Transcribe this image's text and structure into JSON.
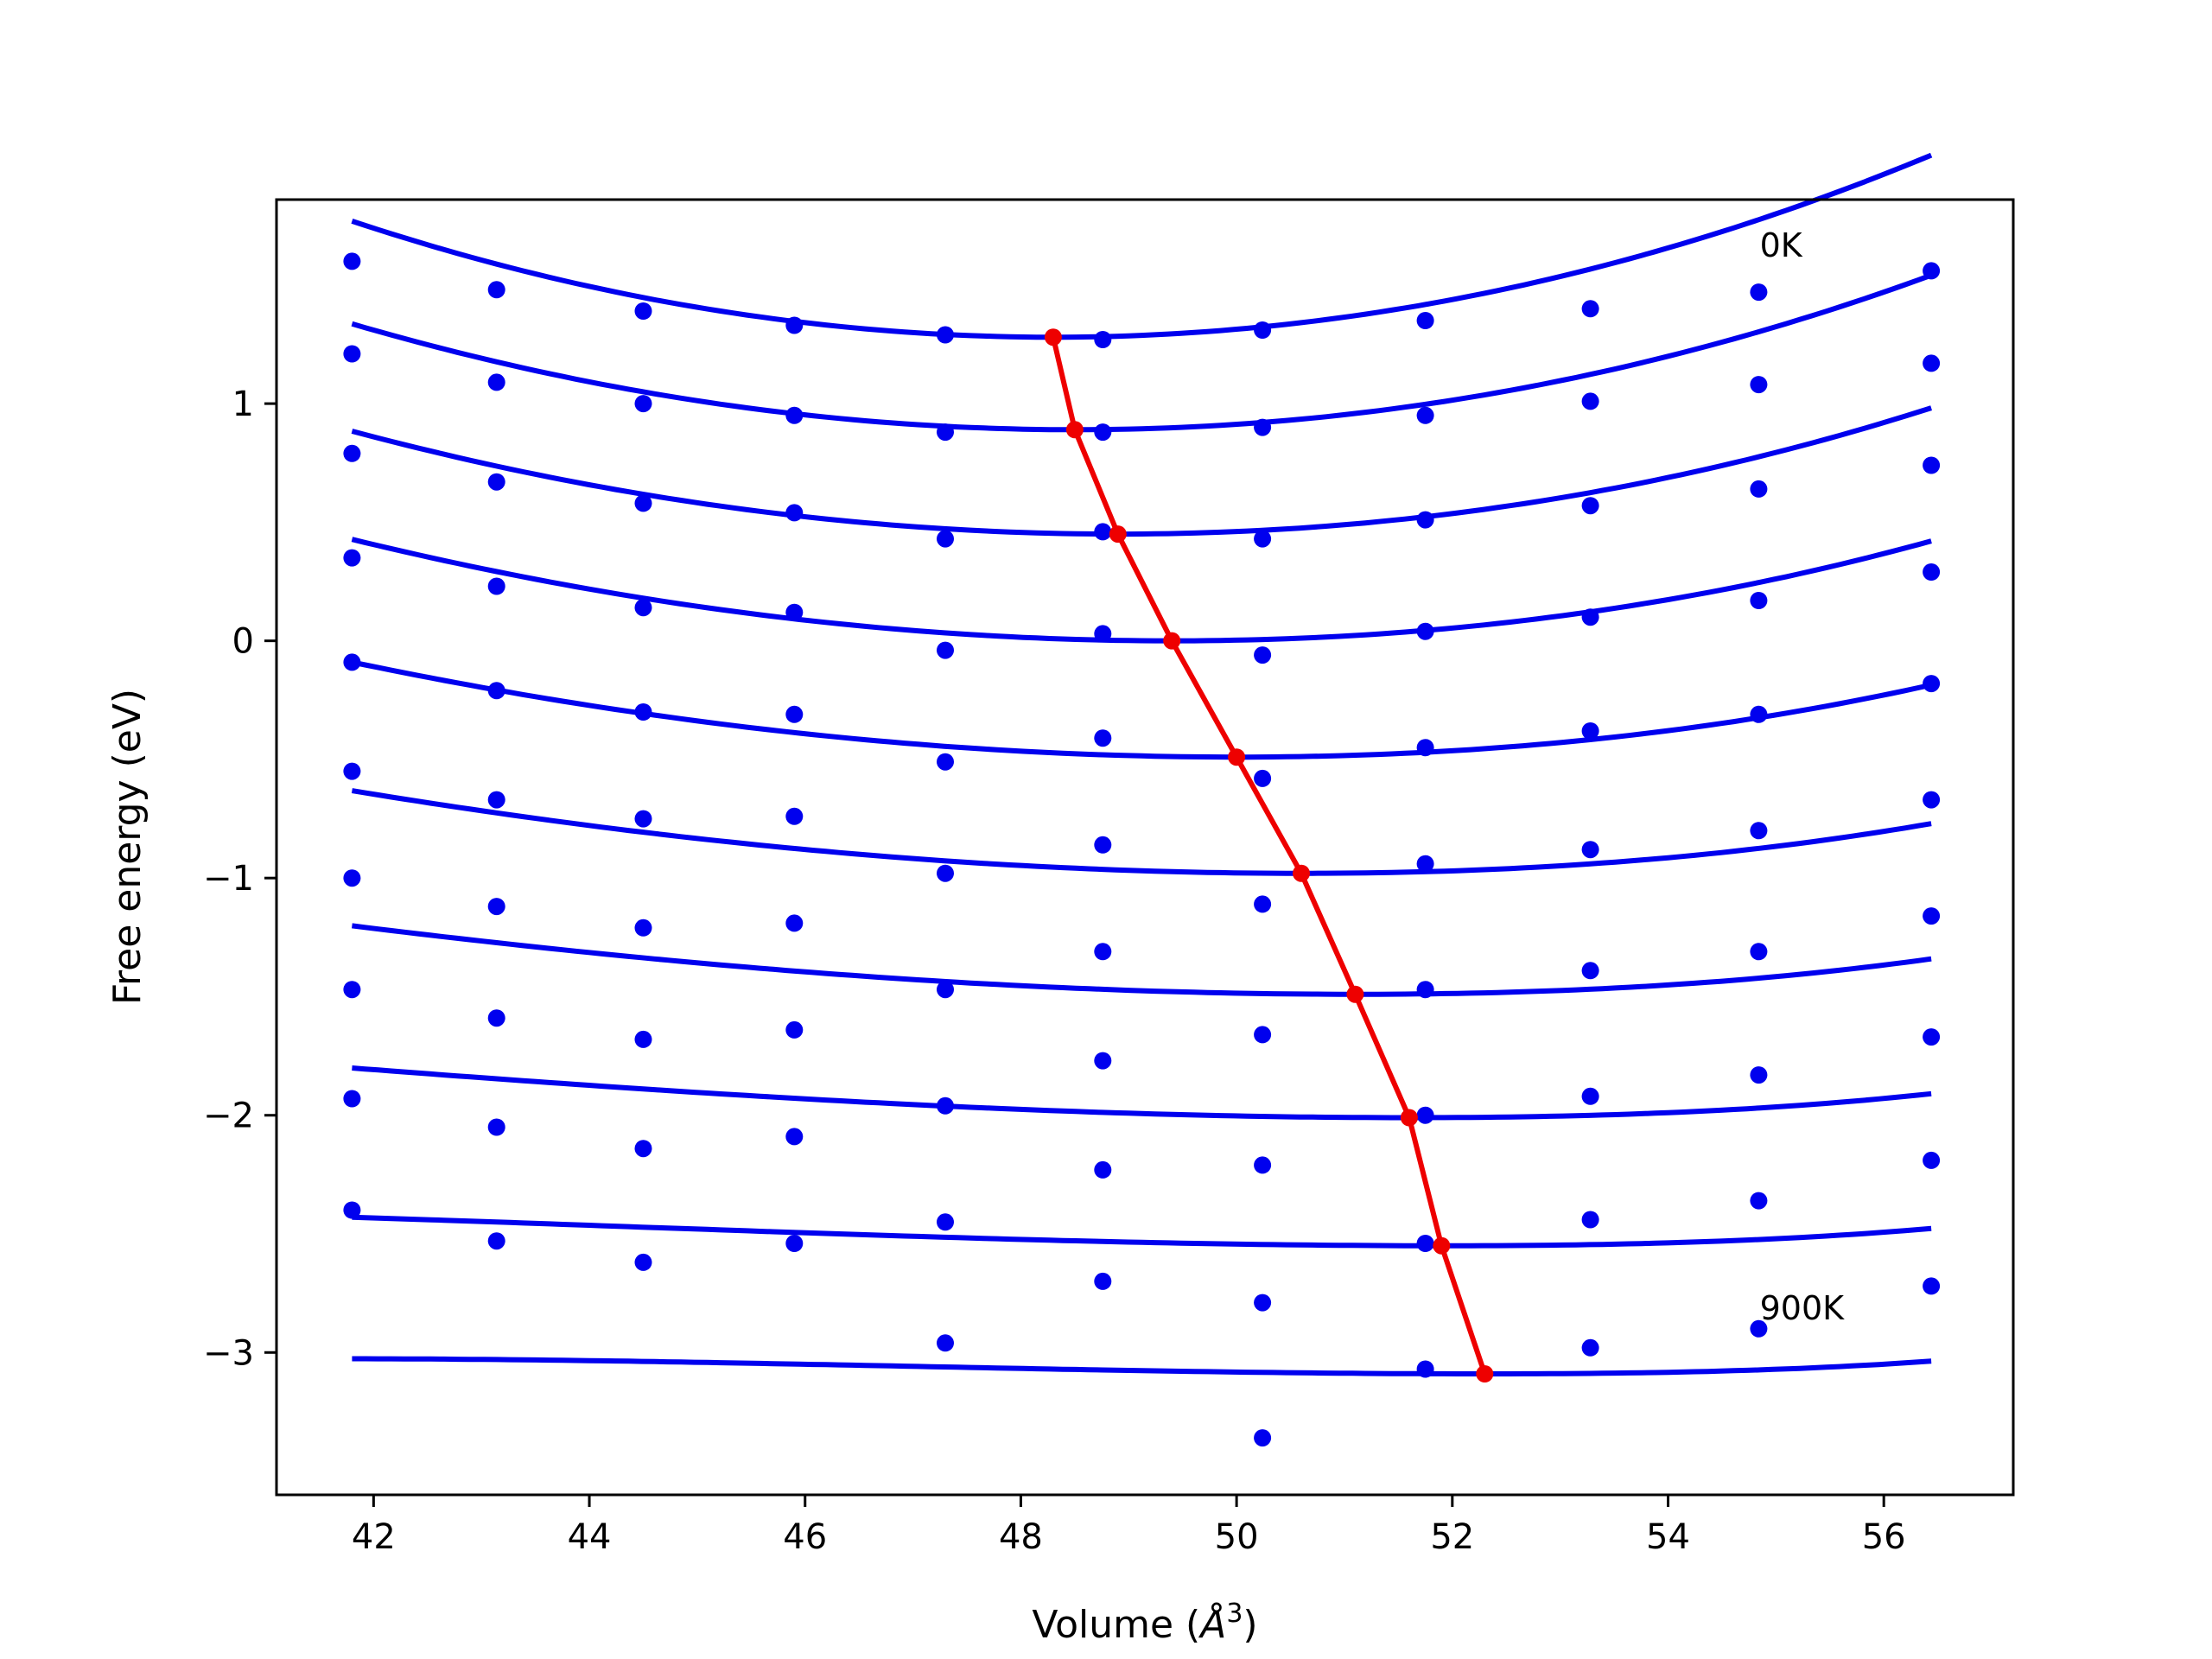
{
  "chart_data": {
    "type": "line",
    "xlabel": "Volume (",
    "xlabel_unit": "Å",
    "xlabel_exp": "3",
    "xlabel_close": ")",
    "ylabel": "Free energy (eV)",
    "xlim": [
      41.1,
      57.2
    ],
    "ylim": [
      -3.6,
      1.86
    ],
    "x_ticks": [
      42,
      44,
      46,
      48,
      50,
      52,
      54,
      56
    ],
    "x_tick_labels": [
      "42",
      "44",
      "46",
      "48",
      "50",
      "52",
      "54",
      "56"
    ],
    "y_ticks": [
      1,
      0,
      -1,
      -2,
      -3
    ],
    "y_tick_labels": [
      "1",
      "0",
      "−1",
      "−2",
      "−3"
    ],
    "x": [
      41.8,
      43.14,
      44.5,
      45.9,
      47.3,
      48.76,
      50.24,
      51.75,
      53.28,
      54.84,
      56.44
    ],
    "fit_color": "#0000ee",
    "point_color": "#0000ee",
    "eq_color": "#ee0000",
    "series": [
      {
        "points": [
          1.6,
          1.48,
          1.39,
          1.33,
          1.29,
          1.27,
          1.31,
          1.35,
          1.4,
          1.47,
          1.56
        ],
        "fit": {
          "a": 0.01158,
          "vmin": 48.3,
          "emin": 1.28
        }
      },
      {
        "points": [
          1.21,
          1.09,
          1.0,
          0.95,
          0.88,
          0.88,
          0.9,
          0.95,
          1.01,
          1.08,
          1.17
        ],
        "fit": {
          "a": 0.01002,
          "vmin": 48.5,
          "emin": 0.89
        }
      },
      {
        "points": [
          0.79,
          0.67,
          0.58,
          0.54,
          0.43,
          0.46,
          0.43,
          0.51,
          0.57,
          0.64,
          0.74
        ],
        "fit": {
          "a": 0.00877,
          "vmin": 48.9,
          "emin": 0.45
        }
      },
      {
        "points": [
          0.35,
          0.23,
          0.14,
          0.12,
          -0.04,
          0.03,
          -0.06,
          0.04,
          0.1,
          0.17,
          0.29
        ],
        "fit": {
          "a": 0.00767,
          "vmin": 49.4,
          "emin": 0.0
        }
      },
      {
        "points": [
          -0.09,
          -0.21,
          -0.3,
          -0.31,
          -0.51,
          -0.41,
          -0.58,
          -0.45,
          -0.38,
          -0.31,
          -0.18
        ],
        "fit": {
          "a": 0.00633,
          "vmin": 50.0,
          "emin": -0.49
        }
      },
      {
        "points": [
          -0.55,
          -0.67,
          -0.75,
          -0.74,
          -0.98,
          -0.86,
          -1.11,
          -0.94,
          -0.88,
          -0.8,
          -0.67
        ],
        "fit": {
          "a": 0.00501,
          "vmin": 50.6,
          "emin": -0.98
        }
      },
      {
        "points": [
          -1.0,
          -1.12,
          -1.21,
          -1.19,
          -1.47,
          -1.31,
          -1.66,
          -1.47,
          -1.39,
          -1.31,
          -1.16
        ],
        "fit": {
          "a": 0.00399,
          "vmin": 51.1,
          "emin": -1.49
        }
      },
      {
        "points": [
          -1.47,
          -1.59,
          -1.68,
          -1.64,
          -1.96,
          -1.77,
          -2.21,
          -2.0,
          -1.92,
          -1.83,
          -1.67
        ],
        "fit": {
          "a": 0.00298,
          "vmin": 51.6,
          "emin": -2.01
        }
      },
      {
        "points": [
          -1.93,
          -2.05,
          -2.14,
          -2.09,
          -2.45,
          -2.23,
          -2.79,
          -2.54,
          -2.44,
          -2.36,
          -2.19
        ],
        "fit": {
          "a": 0.00212,
          "vmin": 51.9,
          "emin": -2.55
        }
      },
      {
        "points": [
          -2.4,
          -2.53,
          -2.62,
          -2.54,
          -2.96,
          -2.7,
          -3.36,
          -3.07,
          -2.98,
          -2.9,
          -2.72
        ],
        "fit": {
          "a": 0.00168,
          "vmin": 52.3,
          "emin": -3.09
        }
      }
    ],
    "equilibrium": {
      "x": [
        48.3,
        48.5,
        48.9,
        49.4,
        50.0,
        50.6,
        51.1,
        51.6,
        51.9,
        52.3
      ],
      "y": [
        1.28,
        0.89,
        0.45,
        0.0,
        -0.49,
        -0.98,
        -1.49,
        -2.01,
        -2.55,
        -3.09
      ]
    },
    "annotations": [
      {
        "text": "0K",
        "x": 54.85,
        "y": 1.62
      },
      {
        "text": "900K",
        "x": 54.85,
        "y": -2.86
      }
    ]
  }
}
